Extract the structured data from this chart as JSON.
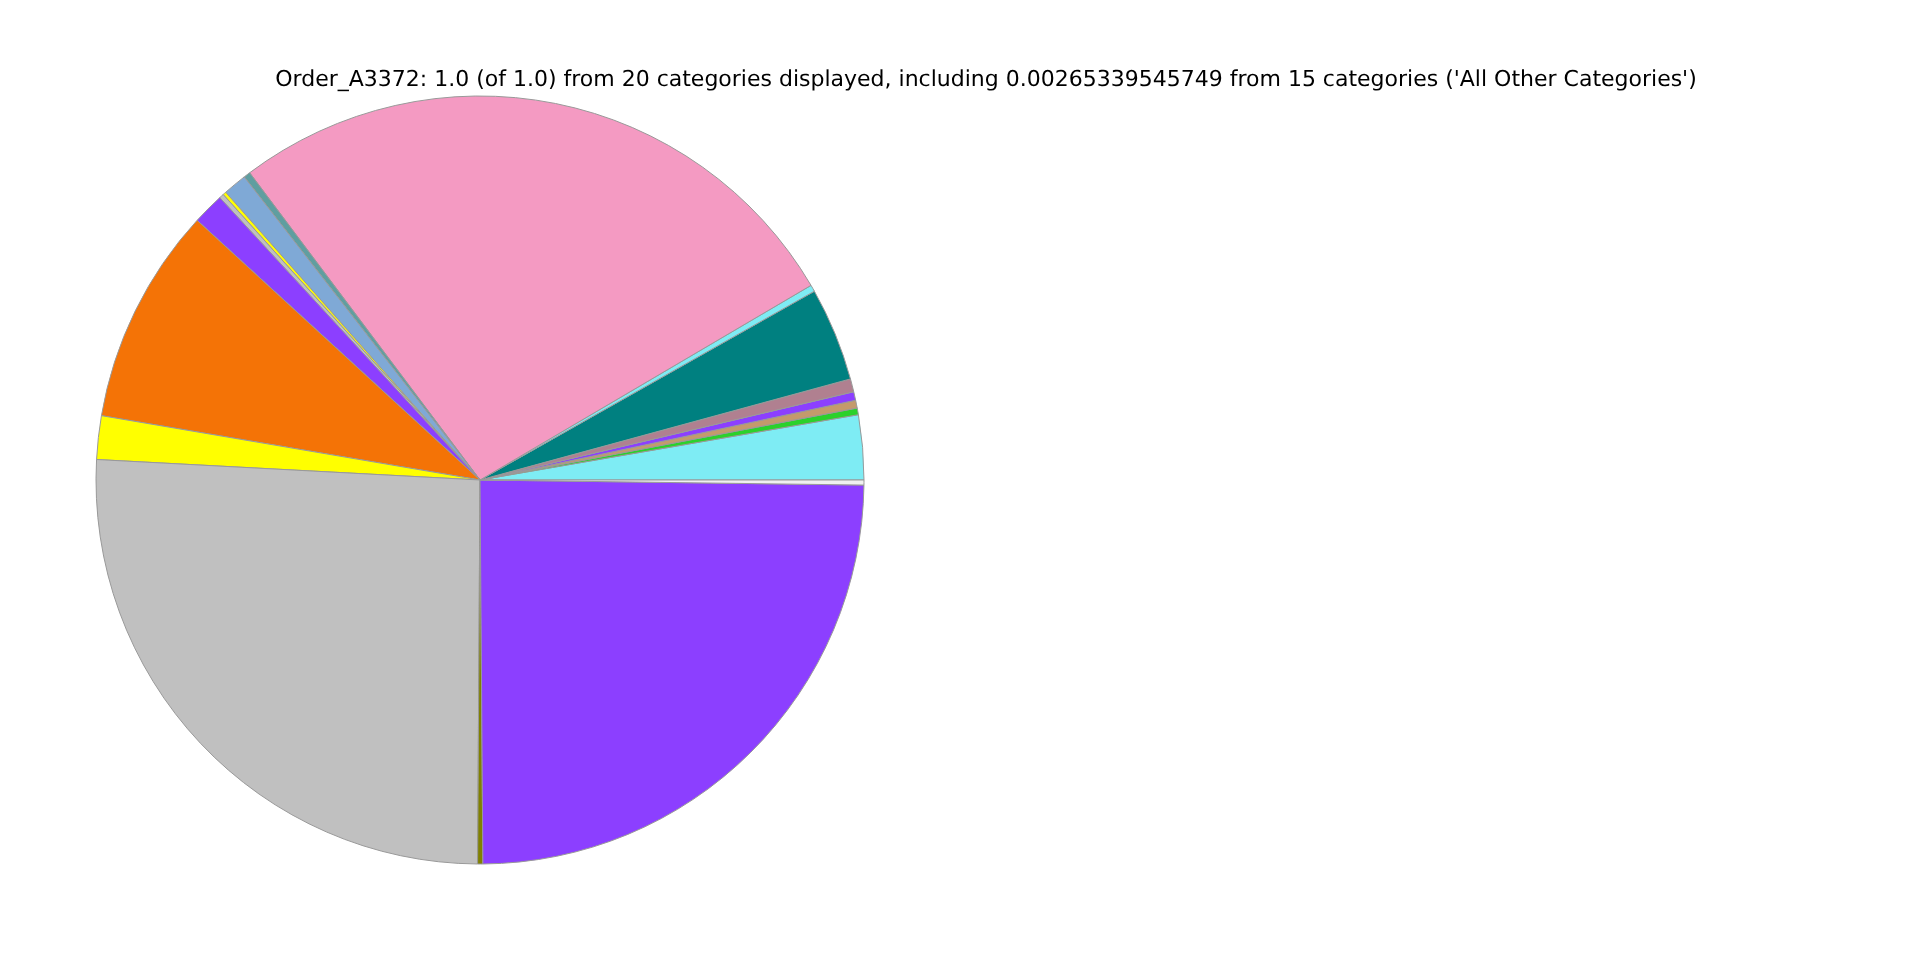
{
  "chart_data": {
    "type": "pie",
    "title": "Order_A3372: 1.0 (of 1.0) from 20 categories displayed, including 0.00265339545749 from 15 categories ('All Other Categories')",
    "categories": [
      null,
      null,
      null,
      null,
      null,
      null,
      null,
      null,
      null,
      null,
      null,
      null,
      null,
      null,
      null,
      null,
      null,
      null,
      null
    ],
    "values": [
      2.72,
      0.28,
      0.33,
      0.36,
      0.55,
      3.94,
      0.28,
      26.78,
      0.28,
      1.0,
      0.14,
      0.19,
      1.33,
      9.14,
      1.83,
      25.75,
      0.22,
      24.67,
      0.21
    ],
    "colors": [
      "#7eecf4",
      "#2bd12b",
      "#c49a6c",
      "#8c3fff",
      "#b08090",
      "#008080",
      "#7eecf4",
      "#f49ac2",
      "#5f9ea0",
      "#7fa9d6",
      "#ffff00",
      "#c0c0c0",
      "#8c3fff",
      "#f47306",
      "#ffff00",
      "#c0c0c0",
      "#808000",
      "#8c3fff",
      "#f0f0f0"
    ]
  }
}
